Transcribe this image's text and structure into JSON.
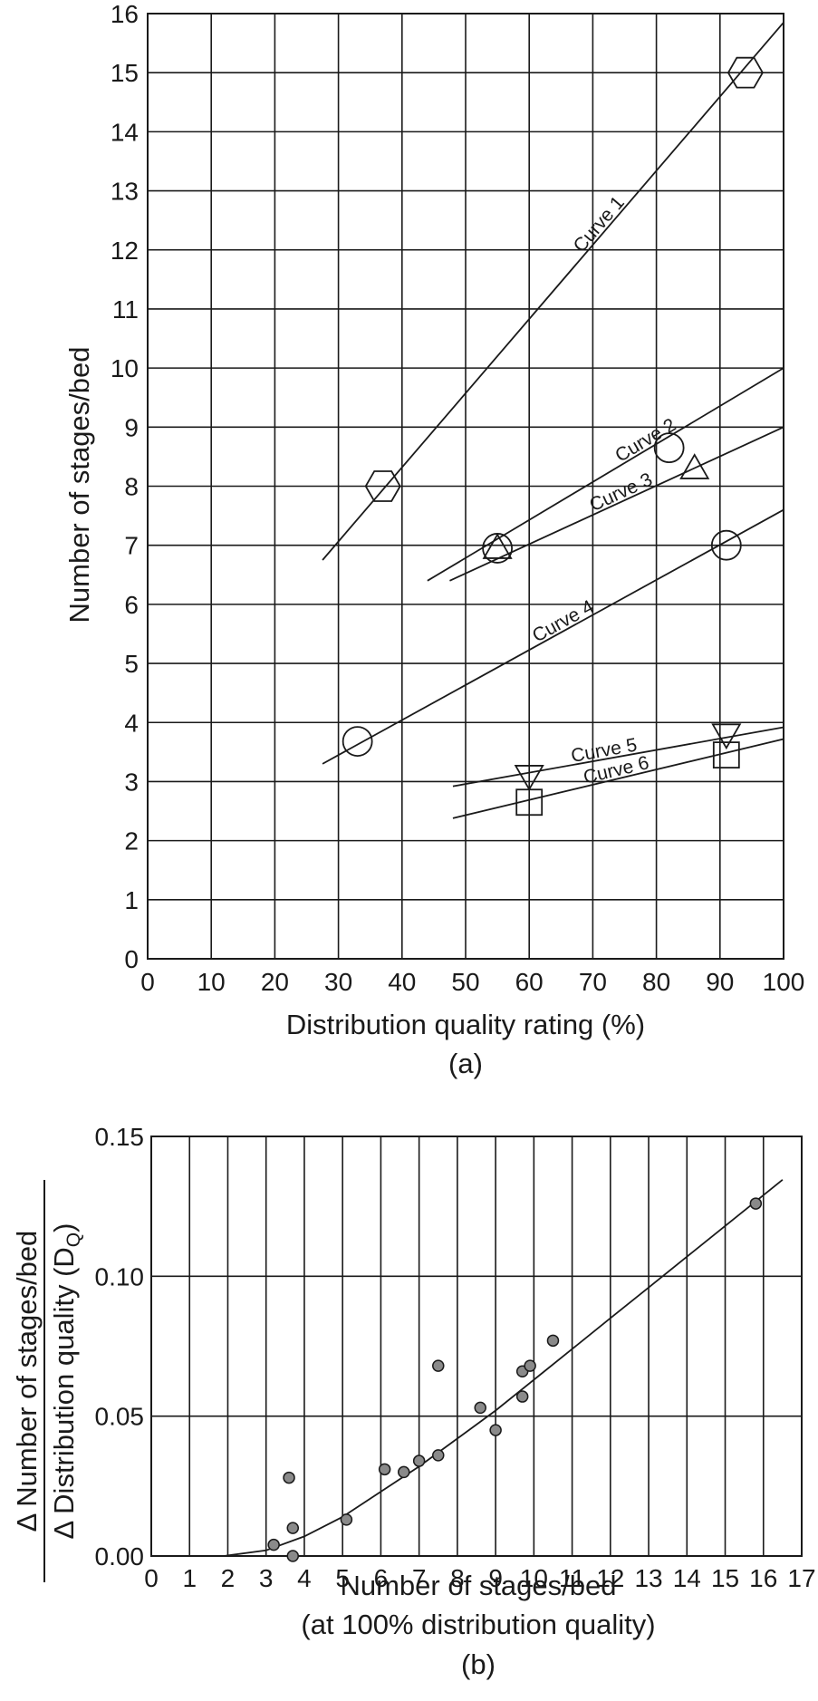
{
  "chart_data": [
    {
      "type": "line",
      "caption": "(a)",
      "xlabel": "Distribution quality rating (%)",
      "ylabel": "Number of stages/bed",
      "xlim": [
        0,
        100
      ],
      "ylim": [
        0,
        16
      ],
      "xticks": [
        "0",
        "10",
        "20",
        "30",
        "40",
        "50",
        "60",
        "70",
        "80",
        "90",
        "100"
      ],
      "yticks": [
        "0",
        "1",
        "2",
        "3",
        "4",
        "5",
        "6",
        "7",
        "8",
        "9",
        "10",
        "11",
        "12",
        "13",
        "14",
        "15",
        "16"
      ],
      "grid": true,
      "series": [
        {
          "name": "Curve 1",
          "marker": "hexagon",
          "points": [
            [
              37,
              8.0
            ],
            [
              94,
              15.0
            ]
          ],
          "line": [
            [
              27.5,
              6.75
            ],
            [
              100,
              15.85
            ]
          ]
        },
        {
          "name": "Curve 2",
          "marker": "circle",
          "points": [
            [
              55,
              6.95
            ],
            [
              82,
              8.65
            ]
          ],
          "line": [
            [
              44,
              6.4
            ],
            [
              100,
              10.0
            ]
          ]
        },
        {
          "name": "Curve 3",
          "marker": "triangle-up",
          "points": [
            [
              55,
              6.95
            ],
            [
              86,
              8.3
            ]
          ],
          "line": [
            [
              47.5,
              6.4
            ],
            [
              100,
              9.0
            ]
          ]
        },
        {
          "name": "Curve 4",
          "marker": "circle",
          "points": [
            [
              33,
              3.68
            ],
            [
              91,
              7.0
            ]
          ],
          "line": [
            [
              27.5,
              3.3
            ],
            [
              100,
              7.6
            ]
          ]
        },
        {
          "name": "Curve 5",
          "marker": "triangle-down",
          "points": [
            [
              60,
              3.1
            ],
            [
              91,
              3.8
            ]
          ],
          "line": [
            [
              48,
              2.92
            ],
            [
              100,
              3.92
            ]
          ]
        },
        {
          "name": "Curve 6",
          "marker": "square",
          "points": [
            [
              60,
              2.65
            ],
            [
              91,
              3.45
            ]
          ],
          "line": [
            [
              48,
              2.38
            ],
            [
              100,
              3.72
            ]
          ]
        }
      ]
    },
    {
      "type": "scatter",
      "caption": "(b)",
      "xlabel": "Number of stages/bed",
      "xlabel2": "(at 100% distribution quality)",
      "ylabel_top": "Δ Number of stages/bed",
      "ylabel_bottom": "Δ Distribution quality (D",
      "ylabel_sub": "Q",
      "ylabel_close": ")",
      "xlim": [
        0,
        17
      ],
      "ylim": [
        0,
        0.15
      ],
      "xticks": [
        "0",
        "1",
        "2",
        "3",
        "4",
        "5",
        "6",
        "7",
        "8",
        "9",
        "10",
        "11",
        "12",
        "13",
        "14",
        "15",
        "16",
        "17"
      ],
      "yticks": [
        "0.00",
        "0.05",
        "0.10",
        "0.15"
      ],
      "grid": true,
      "points": [
        [
          3.2,
          0.004
        ],
        [
          3.6,
          0.028
        ],
        [
          3.7,
          0.0
        ],
        [
          3.7,
          0.01
        ],
        [
          5.1,
          0.013
        ],
        [
          6.1,
          0.031
        ],
        [
          6.6,
          0.03
        ],
        [
          7.0,
          0.034
        ],
        [
          7.5,
          0.036
        ],
        [
          7.5,
          0.068
        ],
        [
          8.6,
          0.053
        ],
        [
          9.0,
          0.045
        ],
        [
          9.7,
          0.057
        ],
        [
          9.7,
          0.066
        ],
        [
          9.9,
          0.068
        ],
        [
          10.5,
          0.077
        ],
        [
          15.8,
          0.126
        ]
      ],
      "fit_curve": [
        [
          1.9,
          0.0
        ],
        [
          3.0,
          0.002
        ],
        [
          4.0,
          0.007
        ],
        [
          5.0,
          0.014
        ],
        [
          6.0,
          0.023
        ],
        [
          7.0,
          0.032
        ],
        [
          8.0,
          0.042
        ],
        [
          9.0,
          0.052
        ],
        [
          10.0,
          0.063
        ],
        [
          11.0,
          0.074
        ],
        [
          12.0,
          0.085
        ],
        [
          13.0,
          0.096
        ],
        [
          14.0,
          0.107
        ],
        [
          15.0,
          0.118
        ],
        [
          16.0,
          0.129
        ],
        [
          16.5,
          0.1345
        ]
      ]
    }
  ]
}
